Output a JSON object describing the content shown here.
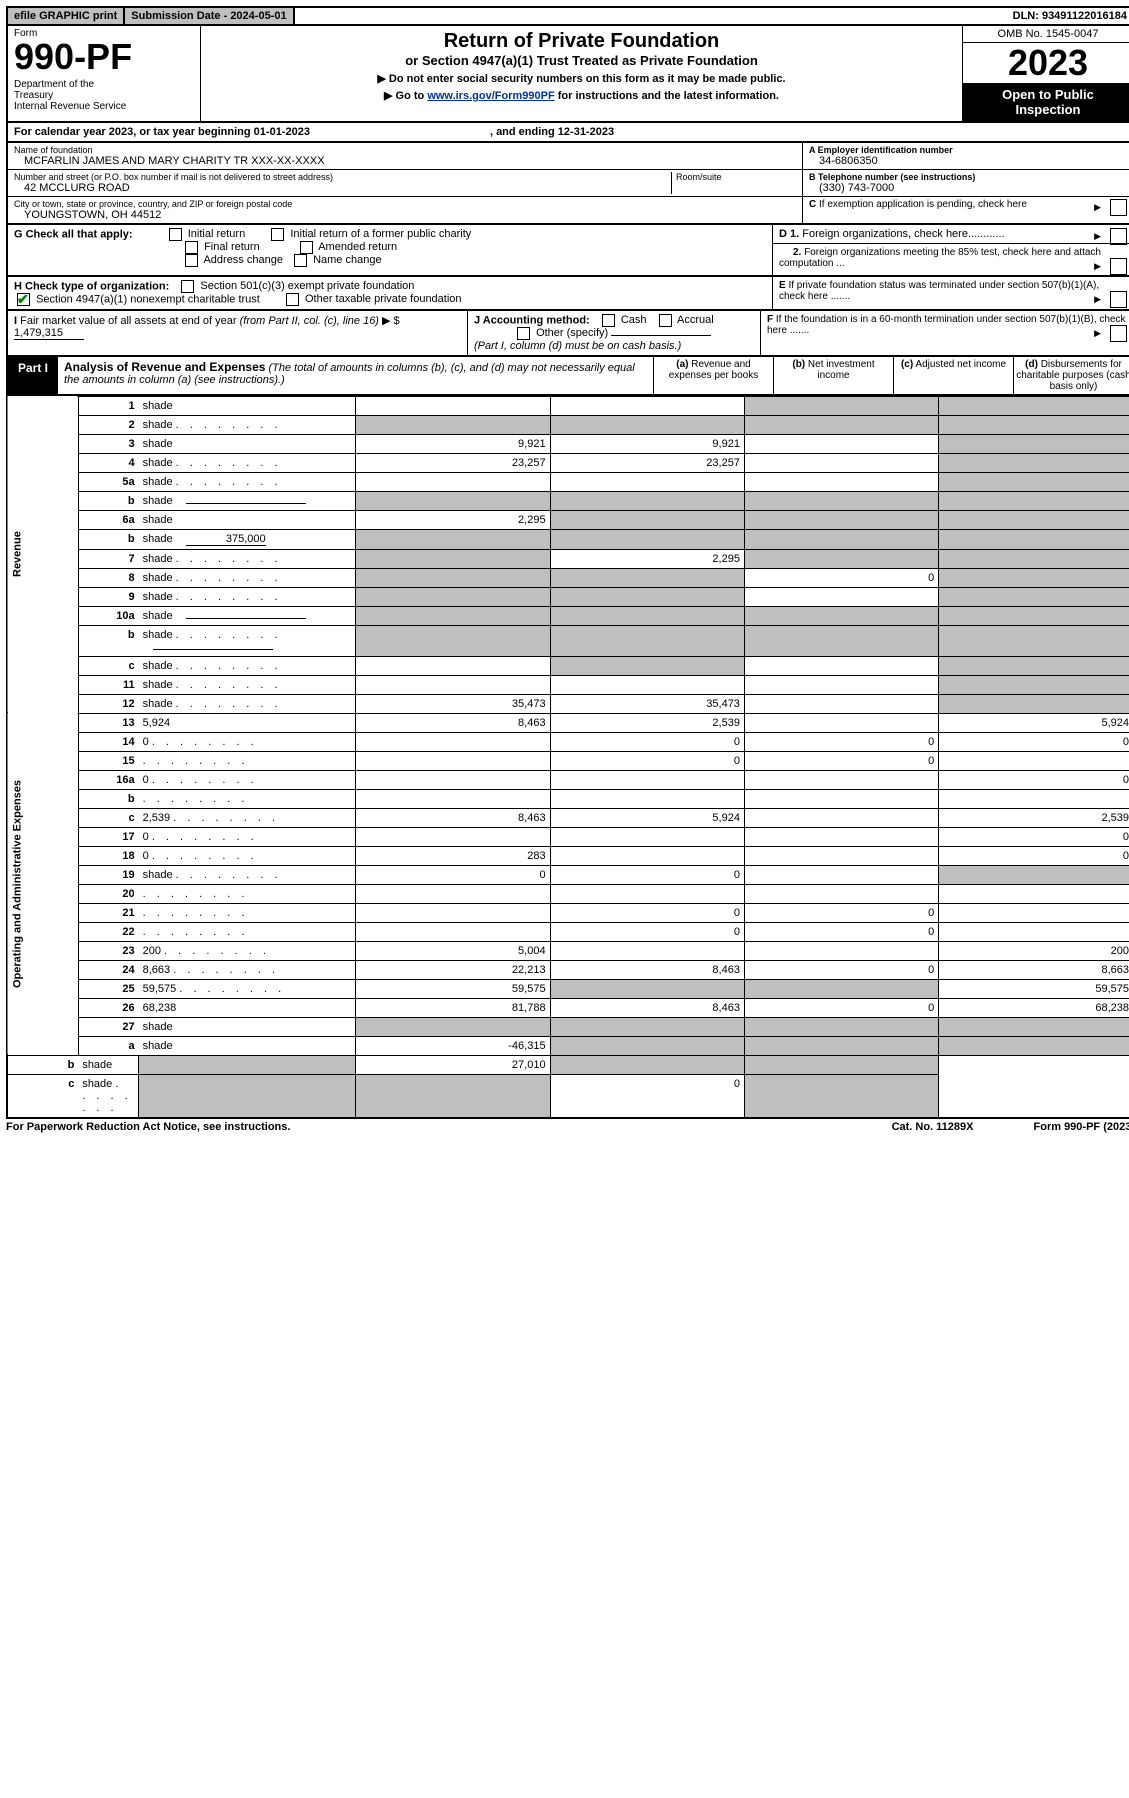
{
  "top": {
    "efile": "efile GRAPHIC print",
    "submission": "Submission Date - 2024-05-01",
    "dln": "DLN: 93491122016184"
  },
  "header": {
    "form_label": "Form",
    "form_number": "990-PF",
    "dept": "Department of the Treasury\nInternal Revenue Service",
    "title": "Return of Private Foundation",
    "subtitle": "or Section 4947(a)(1) Trust Treated as Private Foundation",
    "instr1": "▶ Do not enter social security numbers on this form as it may be made public.",
    "instr2_pre": "▶ Go to ",
    "instr2_link": "www.irs.gov/Form990PF",
    "instr2_post": " for instructions and the latest information.",
    "omb": "OMB No. 1545-0047",
    "year": "2023",
    "open": "Open to Public Inspection"
  },
  "calyear": {
    "pre": "For calendar year 2023, or tax year beginning ",
    "begin": "01-01-2023",
    "mid": ", and ending ",
    "end": "12-31-2023"
  },
  "info": {
    "name_lbl": "Name of foundation",
    "name": "MCFARLIN JAMES AND MARY CHARITY TR XXX-XX-XXXX",
    "addr_lbl": "Number and street (or P.O. box number if mail is not delivered to street address)",
    "addr": "42 MCCLURG ROAD",
    "room_lbl": "Room/suite",
    "city_lbl": "City or town, state or province, country, and ZIP or foreign postal code",
    "city": "YOUNGSTOWN, OH  44512",
    "a_lbl": "A Employer identification number",
    "a_val": "34-6806350",
    "b_lbl": "B Telephone number (see instructions)",
    "b_val": "(330) 743-7000",
    "c_lbl": "C If exemption application is pending, check here",
    "d1_lbl": "D 1. Foreign organizations, check here",
    "d2_lbl": "2. Foreign organizations meeting the 85% test, check here and attach computation ...",
    "e_lbl": "E If private foundation status was terminated under section 507(b)(1)(A), check here .......",
    "f_lbl": "F If the foundation is in a 60-month termination under section 507(b)(1)(B), check here ......."
  },
  "g": {
    "lbl": "G Check all that apply:",
    "opts": [
      "Initial return",
      "Initial return of a former public charity",
      "Final return",
      "Amended return",
      "Address change",
      "Name change"
    ]
  },
  "h": {
    "lbl": "H Check type of organization:",
    "opt1": "Section 501(c)(3) exempt private foundation",
    "opt2": "Section 4947(a)(1) nonexempt charitable trust",
    "opt3": "Other taxable private foundation"
  },
  "i": {
    "lbl": "I Fair market value of all assets at end of year (from Part II, col. (c), line 16)",
    "val": "1,479,315"
  },
  "j": {
    "lbl": "J Accounting method:",
    "opts": [
      "Cash",
      "Accrual",
      "Other (specify)"
    ],
    "note": "(Part I, column (d) must be on cash basis.)"
  },
  "part1": {
    "label": "Part I",
    "title": "Analysis of Revenue and Expenses",
    "title_note": "(The total of amounts in columns (b), (c), and (d) may not necessarily equal the amounts in column (a) (see instructions).)",
    "cols": {
      "a": "(a) Revenue and expenses per books",
      "b": "(b) Net investment income",
      "c": "(c) Adjusted net income",
      "d": "(d) Disbursements for charitable purposes (cash basis only)"
    }
  },
  "sides": {
    "revenue": "Revenue",
    "expenses": "Operating and Administrative Expenses"
  },
  "rows": [
    {
      "n": "1",
      "d": "shade",
      "a": "",
      "b": "",
      "c": "shade"
    },
    {
      "n": "2",
      "d": "shade",
      "dots": true,
      "a": "shade",
      "b": "shade",
      "c": "shade"
    },
    {
      "n": "3",
      "d": "shade",
      "a": "9,921",
      "b": "9,921",
      "c": ""
    },
    {
      "n": "4",
      "d": "shade",
      "dots": true,
      "a": "23,257",
      "b": "23,257",
      "c": ""
    },
    {
      "n": "5a",
      "d": "shade",
      "dots": true,
      "a": "",
      "b": "",
      "c": ""
    },
    {
      "n": "b",
      "d": "shade",
      "inline": true,
      "a": "shade",
      "b": "shade",
      "c": "shade"
    },
    {
      "n": "6a",
      "d": "shade",
      "a": "2,295",
      "b": "shade",
      "c": "shade"
    },
    {
      "n": "b",
      "d": "shade",
      "inline": "375,000",
      "a": "shade",
      "b": "shade",
      "c": "shade"
    },
    {
      "n": "7",
      "d": "shade",
      "dots": true,
      "a": "shade",
      "b": "2,295",
      "c": "shade"
    },
    {
      "n": "8",
      "d": "shade",
      "dots": true,
      "a": "shade",
      "b": "shade",
      "c": "0"
    },
    {
      "n": "9",
      "d": "shade",
      "dots": true,
      "a": "shade",
      "b": "shade",
      "c": ""
    },
    {
      "n": "10a",
      "d": "shade",
      "inline": true,
      "a": "shade",
      "b": "shade",
      "c": "shade"
    },
    {
      "n": "b",
      "d": "shade",
      "dots": true,
      "inline": true,
      "a": "shade",
      "b": "shade",
      "c": "shade"
    },
    {
      "n": "c",
      "d": "shade",
      "dots": true,
      "a": "",
      "b": "shade",
      "c": ""
    },
    {
      "n": "11",
      "d": "shade",
      "dots": true,
      "a": "",
      "b": "",
      "c": ""
    },
    {
      "n": "12",
      "d": "shade",
      "dots": true,
      "a": "35,473",
      "b": "35,473",
      "c": ""
    },
    {
      "n": "13",
      "d": "5,924",
      "a": "8,463",
      "b": "2,539",
      "c": ""
    },
    {
      "n": "14",
      "d": "0",
      "dots": true,
      "a": "",
      "b": "0",
      "c": "0"
    },
    {
      "n": "15",
      "d": "",
      "dots": true,
      "a": "",
      "b": "0",
      "c": "0"
    },
    {
      "n": "16a",
      "d": "0",
      "dots": true,
      "a": "",
      "b": "",
      "c": ""
    },
    {
      "n": "b",
      "d": "",
      "dots": true,
      "a": "",
      "b": "",
      "c": ""
    },
    {
      "n": "c",
      "d": "2,539",
      "dots": true,
      "a": "8,463",
      "b": "5,924",
      "c": ""
    },
    {
      "n": "17",
      "d": "0",
      "dots": true,
      "a": "",
      "b": "",
      "c": ""
    },
    {
      "n": "18",
      "d": "0",
      "dots": true,
      "a": "283",
      "b": "",
      "c": ""
    },
    {
      "n": "19",
      "d": "shade",
      "dots": true,
      "a": "0",
      "b": "0",
      "c": ""
    },
    {
      "n": "20",
      "d": "",
      "dots": true,
      "a": "",
      "b": "",
      "c": ""
    },
    {
      "n": "21",
      "d": "",
      "dots": true,
      "a": "",
      "b": "0",
      "c": "0"
    },
    {
      "n": "22",
      "d": "",
      "dots": true,
      "a": "",
      "b": "0",
      "c": "0"
    },
    {
      "n": "23",
      "d": "200",
      "dots": true,
      "a": "5,004",
      "b": "",
      "c": ""
    },
    {
      "n": "24",
      "d": "8,663",
      "dots": true,
      "a": "22,213",
      "b": "8,463",
      "c": "0"
    },
    {
      "n": "25",
      "d": "59,575",
      "dots": true,
      "a": "59,575",
      "b": "shade",
      "c": "shade"
    },
    {
      "n": "26",
      "d": "68,238",
      "a": "81,788",
      "b": "8,463",
      "c": "0"
    },
    {
      "n": "27",
      "d": "shade",
      "a": "shade",
      "b": "shade",
      "c": "shade"
    },
    {
      "n": "a",
      "d": "shade",
      "a": "-46,315",
      "b": "shade",
      "c": "shade"
    },
    {
      "n": "b",
      "d": "shade",
      "a": "shade",
      "b": "27,010",
      "c": "shade"
    },
    {
      "n": "c",
      "d": "shade",
      "dots": true,
      "a": "shade",
      "b": "shade",
      "c": "0"
    }
  ],
  "footer": {
    "left": "For Paperwork Reduction Act Notice, see instructions.",
    "mid": "Cat. No. 11289X",
    "right": "Form 990-PF (2023)"
  }
}
